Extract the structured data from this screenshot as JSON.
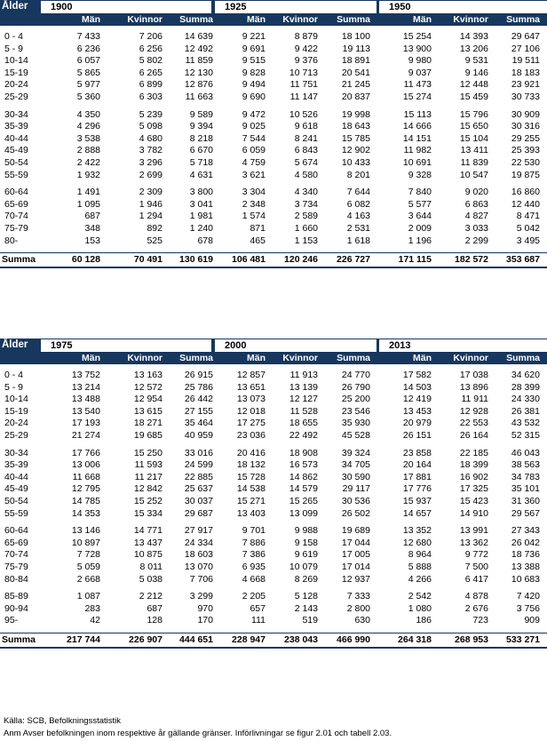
{
  "column_labels": {
    "age": "Ålder",
    "men": "Män",
    "women": "Kvinnor",
    "sum": "Summa"
  },
  "tables": [
    {
      "years": [
        "1900",
        "1925",
        "1950"
      ],
      "groups": [
        [
          {
            "age": "0 - 4",
            "v": [
              "7 433",
              "7 206",
              "14 639",
              "9 221",
              "8 879",
              "18 100",
              "15 254",
              "14 393",
              "29 647"
            ]
          },
          {
            "age": "5 - 9",
            "v": [
              "6 236",
              "6 256",
              "12 492",
              "9 691",
              "9 422",
              "19 113",
              "13 900",
              "13 206",
              "27 106"
            ]
          },
          {
            "age": "10-14",
            "v": [
              "6 057",
              "5 802",
              "11 859",
              "9 515",
              "9 376",
              "18 891",
              "9 980",
              "9 531",
              "19 511"
            ]
          },
          {
            "age": "15-19",
            "v": [
              "5 865",
              "6 265",
              "12 130",
              "9 828",
              "10 713",
              "20 541",
              "9 037",
              "9 146",
              "18 183"
            ]
          },
          {
            "age": "20-24",
            "v": [
              "5 977",
              "6 899",
              "12 876",
              "9 494",
              "11 751",
              "21 245",
              "11 473",
              "12 448",
              "23 921"
            ]
          },
          {
            "age": "25-29",
            "v": [
              "5 360",
              "6 303",
              "11 663",
              "9 690",
              "11 147",
              "20 837",
              "15 274",
              "15 459",
              "30 733"
            ]
          }
        ],
        [
          {
            "age": "30-34",
            "v": [
              "4 350",
              "5 239",
              "9 589",
              "9 472",
              "10 526",
              "19 998",
              "15 113",
              "15 796",
              "30 909"
            ]
          },
          {
            "age": "35-39",
            "v": [
              "4 296",
              "5 098",
              "9 394",
              "9 025",
              "9 618",
              "18 643",
              "14 666",
              "15 650",
              "30 316"
            ]
          },
          {
            "age": "40-44",
            "v": [
              "3 538",
              "4 680",
              "8 218",
              "7 544",
              "8 241",
              "15 785",
              "14 151",
              "15 104",
              "29 255"
            ]
          },
          {
            "age": "45-49",
            "v": [
              "2 888",
              "3 782",
              "6 670",
              "6 059",
              "6 843",
              "12 902",
              "11 982",
              "13 411",
              "25 393"
            ]
          },
          {
            "age": "50-54",
            "v": [
              "2 422",
              "3 296",
              "5 718",
              "4 759",
              "5 674",
              "10 433",
              "10 691",
              "11 839",
              "22 530"
            ]
          },
          {
            "age": "55-59",
            "v": [
              "1 932",
              "2 699",
              "4 631",
              "3 621",
              "4 580",
              "8 201",
              "9 328",
              "10 547",
              "19 875"
            ]
          }
        ],
        [
          {
            "age": "60-64",
            "v": [
              "1 491",
              "2 309",
              "3 800",
              "3 304",
              "4 340",
              "7 644",
              "7 840",
              "9 020",
              "16 860"
            ]
          },
          {
            "age": "65-69",
            "v": [
              "1 095",
              "1 946",
              "3 041",
              "2 348",
              "3 734",
              "6 082",
              "5 577",
              "6 863",
              "12 440"
            ]
          },
          {
            "age": "70-74",
            "v": [
              "687",
              "1 294",
              "1 981",
              "1 574",
              "2 589",
              "4 163",
              "3 644",
              "4 827",
              "8 471"
            ]
          },
          {
            "age": "75-79",
            "v": [
              "348",
              "892",
              "1 240",
              "871",
              "1 660",
              "2 531",
              "2 009",
              "3 033",
              "5 042"
            ]
          },
          {
            "age": "80-",
            "v": [
              "153",
              "525",
              "678",
              "465",
              "1 153",
              "1 618",
              "1 196",
              "2 299",
              "3 495"
            ]
          }
        ]
      ],
      "sum": [
        "60 128",
        "70 491",
        "130 619",
        "106 481",
        "120 246",
        "226 727",
        "171 115",
        "182 572",
        "353 687"
      ]
    },
    {
      "years": [
        "1975",
        "2000",
        "2013"
      ],
      "groups": [
        [
          {
            "age": "0 - 4",
            "v": [
              "13 752",
              "13 163",
              "26 915",
              "12 857",
              "11 913",
              "24 770",
              "17 582",
              "17 038",
              "34 620"
            ]
          },
          {
            "age": "5 - 9",
            "v": [
              "13 214",
              "12 572",
              "25 786",
              "13 651",
              "13 139",
              "26 790",
              "14 503",
              "13 896",
              "28 399"
            ]
          },
          {
            "age": "10-14",
            "v": [
              "13 488",
              "12 954",
              "26 442",
              "13 073",
              "12 127",
              "25 200",
              "12 419",
              "11 911",
              "24 330"
            ]
          },
          {
            "age": "15-19",
            "v": [
              "13 540",
              "13 615",
              "27 155",
              "12 018",
              "11 528",
              "23 546",
              "13 453",
              "12 928",
              "26 381"
            ]
          },
          {
            "age": "20-24",
            "v": [
              "17 193",
              "18 271",
              "35 464",
              "17 275",
              "18 655",
              "35 930",
              "20 979",
              "22 553",
              "43 532"
            ]
          },
          {
            "age": "25-29",
            "v": [
              "21 274",
              "19 685",
              "40 959",
              "23 036",
              "22 492",
              "45 528",
              "26 151",
              "26 164",
              "52 315"
            ]
          }
        ],
        [
          {
            "age": "30-34",
            "v": [
              "17 766",
              "15 250",
              "33 016",
              "20 416",
              "18 908",
              "39 324",
              "23 858",
              "22 185",
              "46 043"
            ]
          },
          {
            "age": "35-39",
            "v": [
              "13 006",
              "11 593",
              "24 599",
              "18 132",
              "16 573",
              "34 705",
              "20 164",
              "18 399",
              "38 563"
            ]
          },
          {
            "age": "40-44",
            "v": [
              "11 668",
              "11 217",
              "22 885",
              "15 728",
              "14 862",
              "30 590",
              "17 881",
              "16 902",
              "34 783"
            ]
          },
          {
            "age": "45-49",
            "v": [
              "12 795",
              "12 842",
              "25 637",
              "14 538",
              "14 579",
              "29 117",
              "17 776",
              "17 325",
              "35 101"
            ]
          },
          {
            "age": "50-54",
            "v": [
              "14 785",
              "15 252",
              "30 037",
              "15 271",
              "15 265",
              "30 536",
              "15 937",
              "15 423",
              "31 360"
            ]
          },
          {
            "age": "55-59",
            "v": [
              "14 353",
              "15 334",
              "29 687",
              "13 403",
              "13 099",
              "26 502",
              "14 657",
              "14 910",
              "29 567"
            ]
          }
        ],
        [
          {
            "age": "60-64",
            "v": [
              "13 146",
              "14 771",
              "27 917",
              "9 701",
              "9 988",
              "19 689",
              "13 352",
              "13 991",
              "27 343"
            ]
          },
          {
            "age": "65-69",
            "v": [
              "10 897",
              "13 437",
              "24 334",
              "7 886",
              "9 158",
              "17 044",
              "12 680",
              "13 362",
              "26 042"
            ]
          },
          {
            "age": "70-74",
            "v": [
              "7 728",
              "10 875",
              "18 603",
              "7 386",
              "9 619",
              "17 005",
              "8 964",
              "9 772",
              "18 736"
            ]
          },
          {
            "age": "75-79",
            "v": [
              "5 059",
              "8 011",
              "13 070",
              "6 935",
              "10 079",
              "17 014",
              "5 888",
              "7 500",
              "13 388"
            ]
          },
          {
            "age": "80-84",
            "v": [
              "2 668",
              "5 038",
              "7 706",
              "4 668",
              "8 269",
              "12 937",
              "4 266",
              "6 417",
              "10 683"
            ]
          }
        ],
        [
          {
            "age": "85-89",
            "v": [
              "1 087",
              "2 212",
              "3 299",
              "2 205",
              "5 128",
              "7 333",
              "2 542",
              "4 878",
              "7 420"
            ]
          },
          {
            "age": "90-94",
            "v": [
              "283",
              "687",
              "970",
              "657",
              "2 143",
              "2 800",
              "1 080",
              "2 676",
              "3 756"
            ]
          },
          {
            "age": "95-",
            "v": [
              "42",
              "128",
              "170",
              "111",
              "519",
              "630",
              "186",
              "723",
              "909"
            ]
          }
        ]
      ],
      "sum": [
        "217 744",
        "226 907",
        "444 651",
        "228 947",
        "238 043",
        "466 990",
        "264 318",
        "268 953",
        "533 271"
      ]
    }
  ],
  "footer": {
    "source": "Källa:  SCB, Befolkningsstatistik",
    "note": "Anm  Avser befolkningen inom respektive år gällande gränser. Införlivningar se figur 2.01 och tabell 2.03."
  }
}
